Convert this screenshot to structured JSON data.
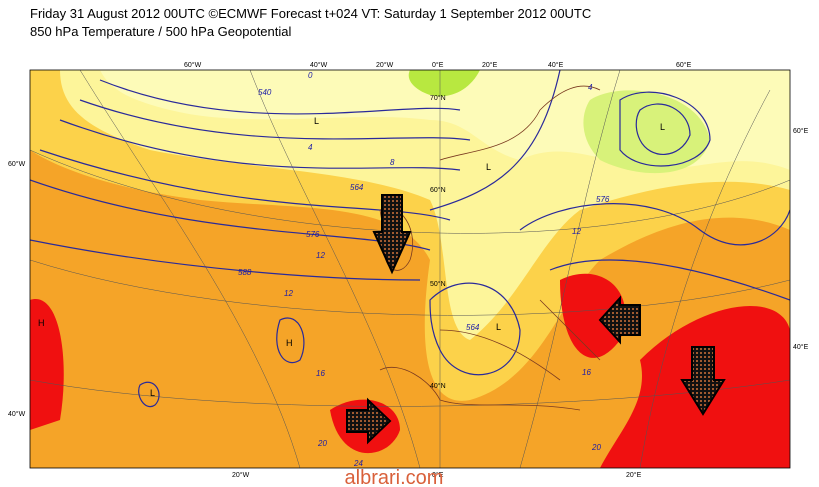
{
  "header": {
    "title": "Friday 31 August 2012 00UTC ©ECMWF Forecast t+024 VT: Saturday 1 September 2012 00UTC",
    "subtitle": "850 hPa Temperature / 500 hPa Geopotential"
  },
  "map": {
    "top_labels": [
      "60°W",
      "40°W",
      "20°W",
      "0°E",
      "20°E",
      "40°E",
      "60°E"
    ],
    "left_labels": [
      "60°W",
      "40°W"
    ],
    "right_labels": [
      "60°E",
      "40°E"
    ],
    "bottom_labels": [
      "20°W",
      "0°E",
      "20°E"
    ],
    "latitude_labels": [
      "70°N",
      "60°N",
      "50°N",
      "40°N"
    ],
    "contour_labels": [
      "540",
      "564",
      "576",
      "588",
      "576",
      "564",
      "0",
      "4",
      "8",
      "12",
      "12",
      "16",
      "20",
      "24",
      "12",
      "16",
      "20",
      "4"
    ],
    "pressure_centers": [
      "L",
      "L",
      "H",
      "L",
      "H",
      "L",
      "L"
    ]
  },
  "watermark": "albrari.com"
}
